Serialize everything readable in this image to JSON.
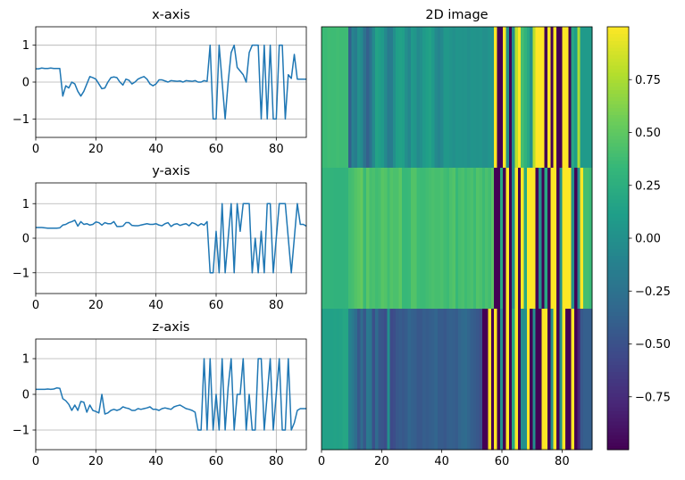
{
  "chart_data": [
    {
      "type": "line",
      "title": "x-axis",
      "xlim": [
        0,
        90
      ],
      "ylim": [
        -1.5,
        1.5
      ],
      "xticks": [
        0,
        20,
        40,
        60,
        80
      ],
      "yticks": [
        -1,
        0,
        1
      ],
      "grid": true,
      "color": "#1f77b4",
      "x": [
        0,
        1,
        2,
        3,
        4,
        5,
        6,
        7,
        8,
        9,
        10,
        11,
        12,
        13,
        14,
        15,
        16,
        17,
        18,
        19,
        20,
        21,
        22,
        23,
        24,
        25,
        26,
        27,
        28,
        29,
        30,
        31,
        32,
        33,
        34,
        35,
        36,
        37,
        38,
        39,
        40,
        41,
        42,
        43,
        44,
        45,
        46,
        47,
        48,
        49,
        50,
        51,
        52,
        53,
        54,
        55,
        56,
        57,
        58,
        59,
        60,
        61,
        62,
        63,
        64,
        65,
        66,
        67,
        68,
        69,
        70,
        71,
        72,
        73,
        74,
        75,
        76,
        77,
        78,
        79,
        80,
        81,
        82,
        83,
        84,
        85,
        86,
        87,
        88,
        89,
        90
      ],
      "y": [
        0.36,
        0.36,
        0.38,
        0.37,
        0.37,
        0.38,
        0.37,
        0.37,
        0.37,
        -0.38,
        -0.1,
        -0.16,
        0.0,
        -0.05,
        -0.25,
        -0.38,
        -0.25,
        -0.05,
        0.15,
        0.12,
        0.08,
        -0.05,
        -0.18,
        -0.16,
        0.0,
        0.12,
        0.14,
        0.12,
        0.0,
        -0.08,
        0.08,
        0.05,
        -0.05,
        0.0,
        0.08,
        0.12,
        0.15,
        0.08,
        -0.05,
        -0.1,
        -0.05,
        0.06,
        0.06,
        0.03,
        0.0,
        0.04,
        0.03,
        0.02,
        0.03,
        0.0,
        0.04,
        0.03,
        0.02,
        0.04,
        0.0,
        0.0,
        0.04,
        0.02,
        1.0,
        -1.0,
        -1.0,
        1.0,
        0.0,
        -1.0,
        0.0,
        0.8,
        1.0,
        0.4,
        0.3,
        0.2,
        0.0,
        0.8,
        1.0,
        1.0,
        1.0,
        -1.0,
        1.0,
        -1.0,
        1.0,
        -1.0,
        -1.0,
        1.0,
        1.0,
        -1.0,
        0.2,
        0.1,
        0.75,
        0.08,
        0.08,
        0.08,
        0.08
      ]
    },
    {
      "type": "line",
      "title": "y-axis",
      "xlim": [
        0,
        90
      ],
      "ylim": [
        -1.6,
        1.6
      ],
      "xticks": [
        0,
        20,
        40,
        60,
        80
      ],
      "yticks": [
        -1,
        0,
        1
      ],
      "grid": true,
      "color": "#1f77b4",
      "x": [
        0,
        1,
        2,
        3,
        4,
        5,
        6,
        7,
        8,
        9,
        10,
        11,
        12,
        13,
        14,
        15,
        16,
        17,
        18,
        19,
        20,
        21,
        22,
        23,
        24,
        25,
        26,
        27,
        28,
        29,
        30,
        31,
        32,
        33,
        34,
        35,
        36,
        37,
        38,
        39,
        40,
        41,
        42,
        43,
        44,
        45,
        46,
        47,
        48,
        49,
        50,
        51,
        52,
        53,
        54,
        55,
        56,
        57,
        58,
        59,
        60,
        61,
        62,
        63,
        64,
        65,
        66,
        67,
        68,
        69,
        70,
        71,
        72,
        73,
        74,
        75,
        76,
        77,
        78,
        79,
        80,
        81,
        82,
        83,
        84,
        85,
        86,
        87,
        88,
        89,
        90
      ],
      "y": [
        0.31,
        0.31,
        0.31,
        0.3,
        0.29,
        0.29,
        0.29,
        0.29,
        0.3,
        0.38,
        0.4,
        0.45,
        0.48,
        0.52,
        0.35,
        0.48,
        0.4,
        0.42,
        0.38,
        0.4,
        0.47,
        0.45,
        0.38,
        0.45,
        0.42,
        0.42,
        0.48,
        0.34,
        0.34,
        0.35,
        0.45,
        0.45,
        0.37,
        0.36,
        0.36,
        0.38,
        0.4,
        0.42,
        0.4,
        0.4,
        0.42,
        0.38,
        0.36,
        0.42,
        0.45,
        0.34,
        0.4,
        0.42,
        0.37,
        0.4,
        0.42,
        0.36,
        0.45,
        0.42,
        0.36,
        0.42,
        0.38,
        0.48,
        -1.0,
        -1.0,
        0.2,
        -1.0,
        1.0,
        -1.0,
        0.0,
        1.0,
        -1.0,
        1.0,
        0.2,
        1.0,
        1.0,
        1.0,
        -1.0,
        0.0,
        -1.0,
        0.2,
        -1.0,
        1.0,
        1.0,
        -1.0,
        0.0,
        1.0,
        1.0,
        1.0,
        0.0,
        -1.0,
        0.0,
        1.0,
        0.4,
        0.4,
        0.35
      ]
    },
    {
      "type": "line",
      "title": "z-axis",
      "xlim": [
        0,
        90
      ],
      "ylim": [
        -1.55,
        1.55
      ],
      "xticks": [
        0,
        20,
        40,
        60,
        80
      ],
      "yticks": [
        -1,
        0,
        1
      ],
      "grid": true,
      "color": "#1f77b4",
      "x": [
        0,
        1,
        2,
        3,
        4,
        5,
        6,
        7,
        8,
        9,
        10,
        11,
        12,
        13,
        14,
        15,
        16,
        17,
        18,
        19,
        20,
        21,
        22,
        23,
        24,
        25,
        26,
        27,
        28,
        29,
        30,
        31,
        32,
        33,
        34,
        35,
        36,
        37,
        38,
        39,
        40,
        41,
        42,
        43,
        44,
        45,
        46,
        47,
        48,
        49,
        50,
        51,
        52,
        53,
        54,
        55,
        56,
        57,
        58,
        59,
        60,
        61,
        62,
        63,
        64,
        65,
        66,
        67,
        68,
        69,
        70,
        71,
        72,
        73,
        74,
        75,
        76,
        77,
        78,
        79,
        80,
        81,
        82,
        83,
        84,
        85,
        86,
        87,
        88,
        89,
        90
      ],
      "y": [
        0.14,
        0.14,
        0.14,
        0.14,
        0.15,
        0.14,
        0.15,
        0.18,
        0.17,
        -0.12,
        -0.18,
        -0.28,
        -0.45,
        -0.3,
        -0.45,
        -0.2,
        -0.22,
        -0.5,
        -0.3,
        -0.45,
        -0.48,
        -0.52,
        0.0,
        -0.55,
        -0.52,
        -0.45,
        -0.42,
        -0.45,
        -0.42,
        -0.35,
        -0.38,
        -0.4,
        -0.45,
        -0.45,
        -0.4,
        -0.42,
        -0.4,
        -0.38,
        -0.35,
        -0.42,
        -0.42,
        -0.45,
        -0.4,
        -0.38,
        -0.4,
        -0.42,
        -0.35,
        -0.32,
        -0.3,
        -0.35,
        -0.4,
        -0.42,
        -0.45,
        -0.5,
        -1.0,
        -1.0,
        1.0,
        -1.0,
        1.0,
        -1.0,
        0.0,
        -1.0,
        1.0,
        -1.0,
        0.2,
        1.0,
        -1.0,
        0.0,
        0.0,
        1.0,
        -1.0,
        0.0,
        -1.0,
        -1.0,
        1.0,
        1.0,
        -1.0,
        0.0,
        1.0,
        -1.0,
        0.0,
        1.0,
        -1.0,
        -1.0,
        1.0,
        -1.0,
        -0.8,
        -0.45,
        -0.4,
        -0.4,
        -0.4
      ]
    },
    {
      "type": "heatmap",
      "title": "2D image",
      "xlim": [
        0,
        90
      ],
      "xticks": [
        0,
        20,
        40,
        60,
        80
      ],
      "rows_from": [
        "x-axis",
        "y-axis",
        "z-axis"
      ],
      "colormap": "viridis",
      "colorbar": {
        "vmin": -1.0,
        "vmax": 1.0,
        "ticks": [
          -0.75,
          -0.5,
          -0.25,
          0.0,
          0.25,
          0.5,
          0.75
        ],
        "tick_labels": [
          "−0.75",
          "−0.50",
          "−0.25",
          "0.00",
          "0.25",
          "0.50",
          "0.75"
        ]
      }
    }
  ]
}
